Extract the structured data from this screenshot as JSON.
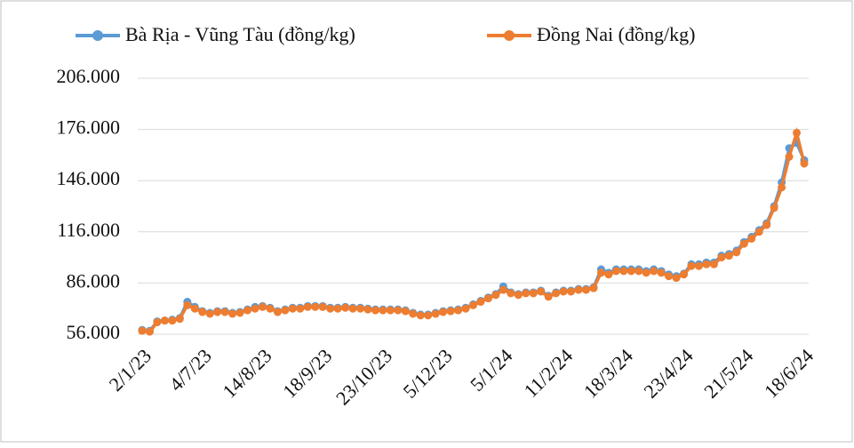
{
  "chart_data": {
    "type": "line",
    "categories": [
      "2/1/23",
      null,
      null,
      null,
      null,
      null,
      null,
      null,
      "4/7/23",
      null,
      null,
      null,
      null,
      null,
      null,
      null,
      "14/8/23",
      null,
      null,
      null,
      null,
      null,
      null,
      null,
      "18/9/23",
      null,
      null,
      null,
      null,
      null,
      null,
      null,
      "23/10/23",
      null,
      null,
      null,
      null,
      null,
      null,
      null,
      "5/12/23",
      null,
      null,
      null,
      null,
      null,
      null,
      null,
      "5/1/24",
      null,
      null,
      null,
      null,
      null,
      null,
      null,
      "11/2/24",
      null,
      null,
      null,
      null,
      null,
      null,
      null,
      "18/3/24",
      null,
      null,
      null,
      null,
      null,
      null,
      null,
      "23/4/24",
      null,
      null,
      null,
      null,
      null,
      null,
      null,
      "21/5/24",
      null,
      null,
      null,
      null,
      null,
      null,
      null,
      "18/6/24"
    ],
    "series": [
      {
        "name": "Bà Rịa - Vũng Tàu (đồng/kg)",
        "color": "#5b9bd5",
        "values": [
          58500,
          58000,
          63500,
          64000,
          64500,
          65500,
          75000,
          72000,
          69500,
          68500,
          69500,
          69500,
          68500,
          69000,
          70500,
          72000,
          72500,
          71500,
          69500,
          70500,
          71500,
          71500,
          72500,
          72500,
          72500,
          71500,
          71500,
          72000,
          71500,
          71500,
          71000,
          70500,
          70500,
          70500,
          70500,
          70000,
          68500,
          67500,
          67500,
          68500,
          69500,
          70000,
          70500,
          71500,
          73500,
          75500,
          77500,
          79500,
          84000,
          80500,
          79500,
          80500,
          80500,
          81500,
          78500,
          80500,
          81500,
          81500,
          82500,
          82500,
          83500,
          94000,
          92000,
          94000,
          94000,
          94000,
          94000,
          93000,
          94000,
          93000,
          91000,
          90000,
          91500,
          97000,
          97000,
          98000,
          98000,
          102000,
          103000,
          105000,
          110000,
          113000,
          117000,
          121000,
          131000,
          145000,
          165000,
          168000,
          158000
        ]
      },
      {
        "name": "Đồng Nai (đồng/kg)",
        "color": "#ed7d31",
        "values": [
          58000,
          57500,
          63000,
          64000,
          64000,
          65000,
          73000,
          71000,
          69000,
          68000,
          69000,
          69000,
          68000,
          68500,
          70000,
          71000,
          72000,
          71000,
          69000,
          70000,
          71000,
          71000,
          72000,
          72000,
          72000,
          71000,
          71000,
          71500,
          71000,
          71000,
          70500,
          70000,
          70000,
          70000,
          70000,
          69500,
          68000,
          67000,
          67000,
          68000,
          69000,
          69500,
          70000,
          71000,
          73000,
          75000,
          77000,
          79000,
          82000,
          80000,
          79000,
          80000,
          80000,
          81000,
          78000,
          80000,
          81000,
          81000,
          82000,
          82000,
          83000,
          92000,
          91000,
          93000,
          93000,
          93000,
          93000,
          92000,
          93000,
          92000,
          90000,
          89000,
          91000,
          96000,
          96000,
          97000,
          97000,
          101000,
          102000,
          104000,
          109000,
          112000,
          116000,
          120000,
          130000,
          142000,
          160000,
          174000,
          156000
        ]
      }
    ],
    "ylim": [
      56000,
      206000
    ],
    "yticks": [
      {
        "value": 56000,
        "label": "56.000"
      },
      {
        "value": 86000,
        "label": "86.000"
      },
      {
        "value": 116000,
        "label": "116.000"
      },
      {
        "value": 146000,
        "label": "146.000"
      },
      {
        "value": 176000,
        "label": "176.000"
      },
      {
        "value": 206000,
        "label": "206.000"
      }
    ],
    "grid": true,
    "legend": "top"
  }
}
